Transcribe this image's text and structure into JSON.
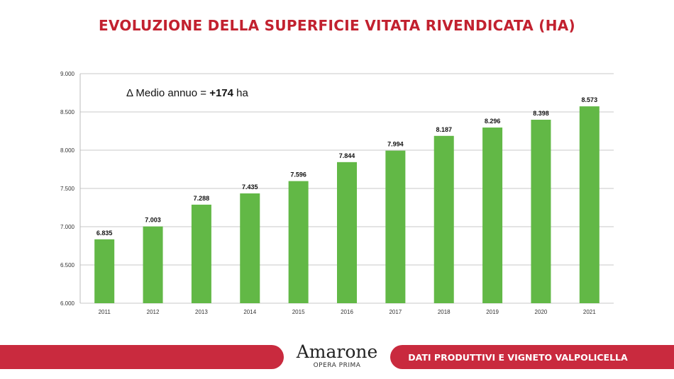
{
  "title": "EVOLUZIONE DELLA SUPERFICIE VITATA RIVENDICATA (HA)",
  "chart_data": {
    "type": "bar",
    "categories": [
      "2011",
      "2012",
      "2013",
      "2014",
      "2015",
      "2016",
      "2017",
      "2018",
      "2019",
      "2020",
      "2021"
    ],
    "values": [
      6835,
      7003,
      7288,
      7435,
      7596,
      7844,
      7994,
      8187,
      8296,
      8398,
      8573
    ],
    "data_labels": [
      "6.835",
      "7.003",
      "7.288",
      "7.435",
      "7.596",
      "7.844",
      "7.994",
      "8.187",
      "8.296",
      "8.398",
      "8.573"
    ],
    "ylim": [
      6000,
      9000
    ],
    "yticks": [
      6000,
      6500,
      7000,
      7500,
      8000,
      8500,
      9000
    ],
    "ytick_labels": [
      "6.000",
      "6.500",
      "7.000",
      "7.500",
      "8.000",
      "8.500",
      "9.000"
    ],
    "grid": true,
    "bar_color": "#62b846",
    "annotation": {
      "prefix": "Δ Medio annuo = ",
      "value": "+174",
      "suffix": " ha"
    }
  },
  "footer": {
    "logo_main": "Amarone",
    "logo_sub": "OPERA PRIMA",
    "section": "DATI PRODUTTIVI E VIGNETO VALPOLICELLA",
    "accent": "#c92a3e"
  }
}
